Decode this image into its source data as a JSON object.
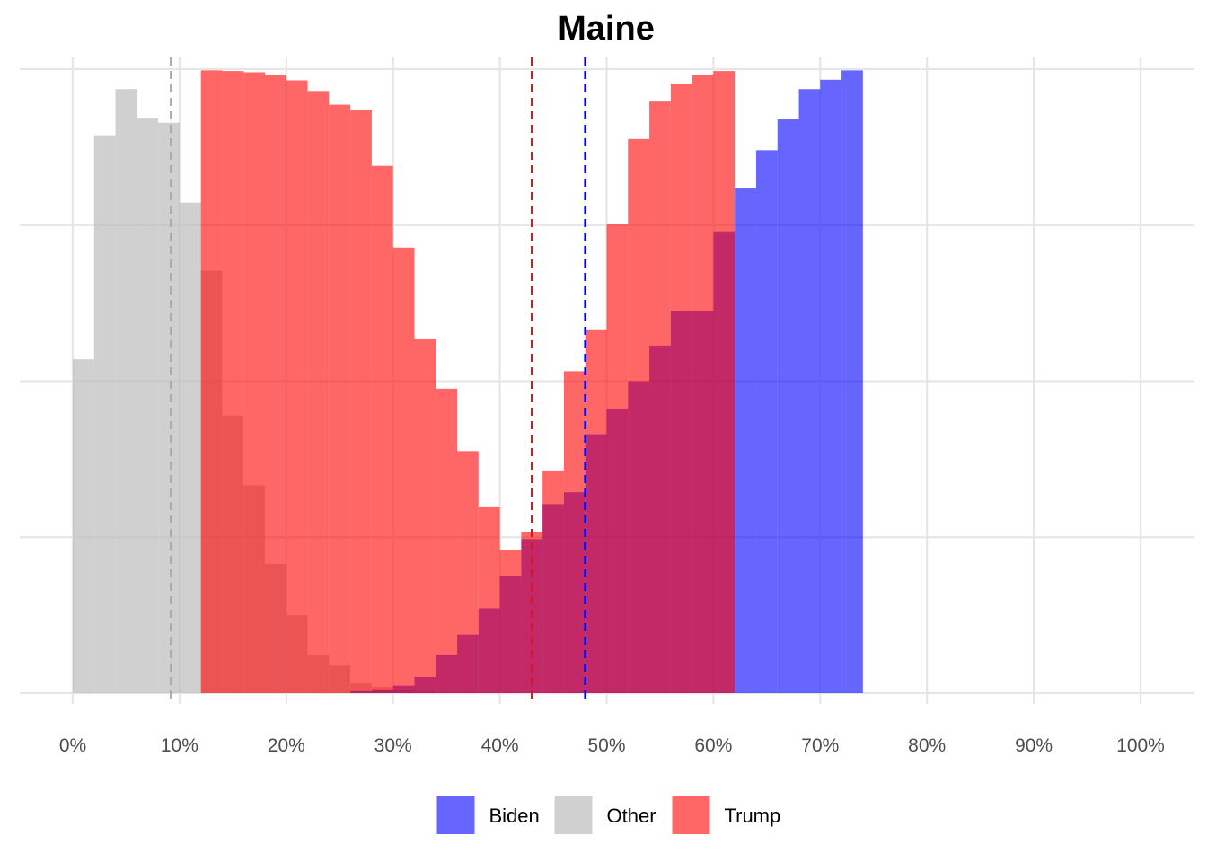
{
  "chart_data": {
    "type": "histogram",
    "title": "Maine",
    "xlabel": "",
    "ylabel": "",
    "x_tick_labels": [
      "0%",
      "10%",
      "20%",
      "30%",
      "40%",
      "50%",
      "60%",
      "70%",
      "80%",
      "90%",
      "100%"
    ],
    "x_ticks": [
      0,
      10,
      20,
      30,
      40,
      50,
      60,
      70,
      80,
      90,
      100
    ],
    "xlim": [
      -5,
      105
    ],
    "ylim": [
      0,
      1.0
    ],
    "grid": true,
    "legend_position": "bottom",
    "bin_width": 2,
    "series": [
      {
        "name": "Other",
        "color": "#bebebe",
        "opacity": 0.72,
        "bins": [
          [
            1,
            0.535
          ],
          [
            3,
            0.894
          ],
          [
            5,
            0.968
          ],
          [
            7,
            0.922
          ],
          [
            9,
            0.914
          ],
          [
            11,
            0.786
          ],
          [
            13,
            0.677
          ],
          [
            15,
            0.445
          ],
          [
            17,
            0.333
          ],
          [
            19,
            0.207
          ],
          [
            21,
            0.125
          ],
          [
            23,
            0.061
          ],
          [
            25,
            0.044
          ],
          [
            27,
            0.016
          ],
          [
            29,
            0.01
          ],
          [
            31,
            0.005
          ],
          [
            33,
            0.002
          ]
        ]
      },
      {
        "name": "Biden",
        "color": "#0000ff",
        "opacity": 0.6,
        "bins": [
          [
            27,
            0.003
          ],
          [
            29,
            0.006
          ],
          [
            31,
            0.012
          ],
          [
            33,
            0.026
          ],
          [
            35,
            0.062
          ],
          [
            37,
            0.094
          ],
          [
            39,
            0.136
          ],
          [
            41,
            0.187
          ],
          [
            43,
            0.247
          ],
          [
            45,
            0.303
          ],
          [
            47,
            0.322
          ],
          [
            49,
            0.415
          ],
          [
            51,
            0.455
          ],
          [
            53,
            0.5
          ],
          [
            55,
            0.557
          ],
          [
            57,
            0.613
          ],
          [
            59,
            0.613
          ],
          [
            61,
            0.74
          ],
          [
            63,
            0.81
          ],
          [
            65,
            0.87
          ],
          [
            67,
            0.92
          ],
          [
            69,
            0.968
          ],
          [
            71,
            0.983
          ],
          [
            73,
            0.998
          ]
        ]
      },
      {
        "name": "Trump",
        "color": "#ff0000",
        "opacity": 0.6,
        "bins": [
          [
            13,
            0.998
          ],
          [
            15,
            0.997
          ],
          [
            17,
            0.995
          ],
          [
            19,
            0.991
          ],
          [
            21,
            0.982
          ],
          [
            23,
            0.965
          ],
          [
            25,
            0.943
          ],
          [
            27,
            0.935
          ],
          [
            29,
            0.845
          ],
          [
            31,
            0.714
          ],
          [
            33,
            0.568
          ],
          [
            35,
            0.488
          ],
          [
            37,
            0.388
          ],
          [
            39,
            0.298
          ],
          [
            41,
            0.23
          ],
          [
            43,
            0.259
          ],
          [
            45,
            0.357
          ],
          [
            47,
            0.516
          ],
          [
            49,
            0.583
          ],
          [
            51,
            0.751
          ],
          [
            53,
            0.888
          ],
          [
            55,
            0.948
          ],
          [
            57,
            0.977
          ],
          [
            59,
            0.99
          ],
          [
            61,
            0.997
          ]
        ]
      }
    ],
    "reference_lines": [
      {
        "series": "Other",
        "x": 9.2,
        "color": "#aaaaaa",
        "style": "dashed"
      },
      {
        "series": "Trump",
        "x": 43,
        "color": "#e8101a",
        "style": "dashed"
      },
      {
        "series": "Biden",
        "x": 48,
        "color": "#0000ee",
        "style": "dashed"
      }
    ],
    "legend": [
      {
        "label": "Biden",
        "color": "#6666ff"
      },
      {
        "label": "Other",
        "color": "#d0d0d0"
      },
      {
        "label": "Trump",
        "color": "#ff6666"
      }
    ]
  }
}
